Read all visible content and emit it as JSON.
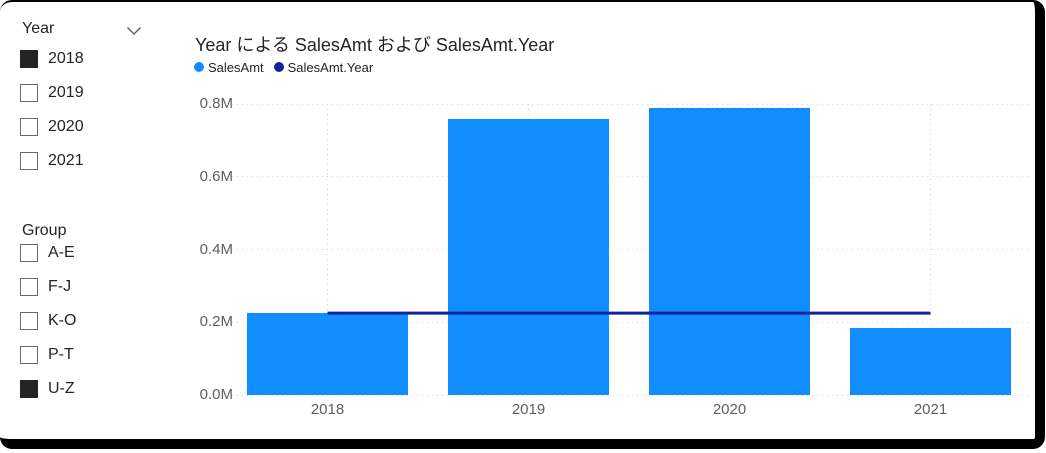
{
  "colors": {
    "bar": "#118DFF",
    "line": "#12239E",
    "title_text": "#252423",
    "axis_text": "#605E5C",
    "grid": "#D2D2D2",
    "checkbox_checked_fill": "#252423",
    "checkbox_border": "#6B6B6B",
    "frame_border": "#000000",
    "background": "#FFFFFF"
  },
  "icons": {
    "slicer_header": "chevron-down-icon"
  },
  "slicers": {
    "year": {
      "title": "Year",
      "items": [
        {
          "label": "2018",
          "checked": true
        },
        {
          "label": "2019",
          "checked": false
        },
        {
          "label": "2020",
          "checked": false
        },
        {
          "label": "2021",
          "checked": false
        }
      ]
    },
    "group": {
      "title": "Group",
      "items": [
        {
          "label": "A-E",
          "checked": false
        },
        {
          "label": "F-J",
          "checked": false
        },
        {
          "label": "K-O",
          "checked": false
        },
        {
          "label": "P-T",
          "checked": false
        },
        {
          "label": "U-Z",
          "checked": true
        }
      ]
    }
  },
  "chart_data": {
    "type": "combo",
    "title": "Year による SalesAmt および SalesAmt.Year",
    "categories": [
      "2018",
      "2019",
      "2020",
      "2021"
    ],
    "series": [
      {
        "name": "SalesAmt",
        "type": "column",
        "color": "#118DFF",
        "values": [
          0.226,
          0.76,
          0.79,
          0.185
        ]
      },
      {
        "name": "SalesAmt.Year",
        "type": "line",
        "color": "#12239E",
        "values": [
          0.225,
          0.225,
          0.225,
          0.225
        ]
      }
    ],
    "y_axis": {
      "unit": "M",
      "max": 0.8,
      "ticks": [
        0,
        0.2,
        0.4,
        0.6,
        0.8
      ],
      "tick_labels": [
        "0.0M",
        "0.2M",
        "0.4M",
        "0.6M",
        "0.8M"
      ]
    },
    "legend": {
      "position": "top",
      "entries": [
        "SalesAmt",
        "SalesAmt.Year"
      ]
    },
    "grid": "dotted",
    "xlabel": "",
    "ylabel": ""
  }
}
